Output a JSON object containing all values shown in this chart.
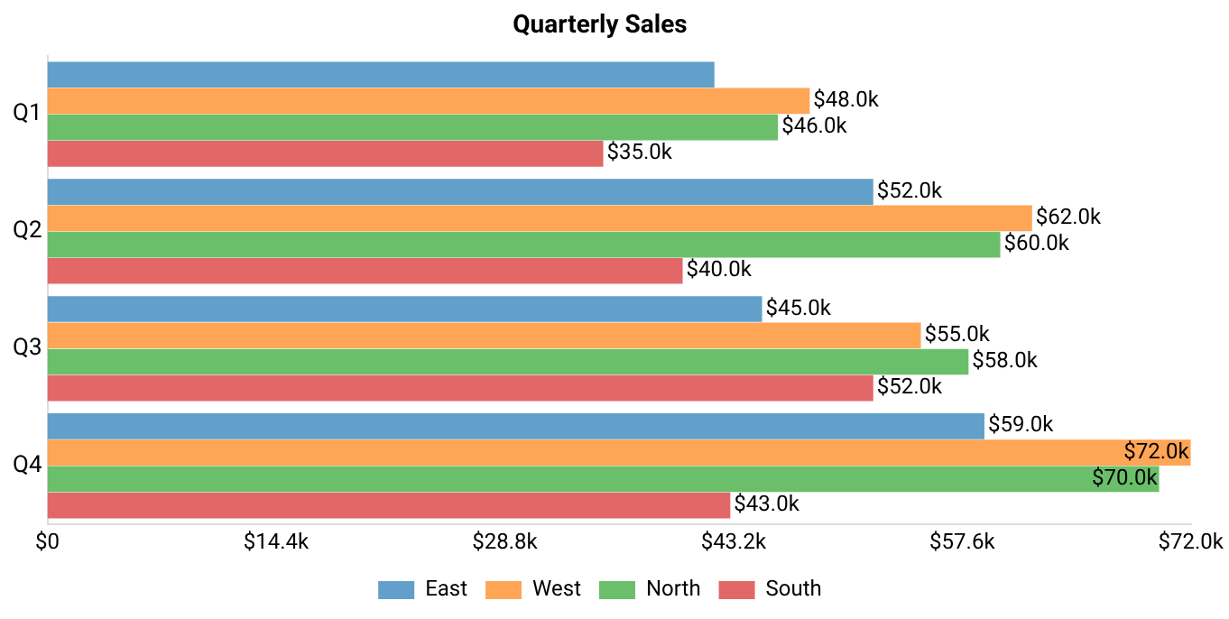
{
  "chart_data": {
    "type": "bar",
    "orientation": "horizontal",
    "title": "Quarterly Sales",
    "categories": [
      "Q1",
      "Q2",
      "Q3",
      "Q4"
    ],
    "series": [
      {
        "name": "East",
        "color": "#62a0cb",
        "values": [
          42,
          52,
          45,
          59
        ],
        "value_labels": [
          null,
          "$52.0k",
          "$45.0k",
          "$59.0k"
        ]
      },
      {
        "name": "West",
        "color": "#ffa556",
        "values": [
          48,
          62,
          55,
          72
        ],
        "value_labels": [
          "$48.0k",
          "$62.0k",
          "$55.0k",
          "$72.0k"
        ]
      },
      {
        "name": "North",
        "color": "#6bbf6b",
        "values": [
          46,
          60,
          58,
          70
        ],
        "value_labels": [
          "$46.0k",
          "$60.0k",
          "$58.0k",
          "$70.0k"
        ]
      },
      {
        "name": "South",
        "color": "#e26868",
        "values": [
          35,
          40,
          52,
          43
        ],
        "value_labels": [
          "$35.0k",
          "$40.0k",
          "$52.0k",
          "$43.0k"
        ]
      }
    ],
    "xlim": [
      0,
      72
    ],
    "xticks": [
      {
        "value": 0,
        "label": "$0"
      },
      {
        "value": 14.4,
        "label": "$14.4k"
      },
      {
        "value": 28.8,
        "label": "$28.8k"
      },
      {
        "value": 43.2,
        "label": "$43.2k"
      },
      {
        "value": 57.6,
        "label": "$57.6k"
      },
      {
        "value": 72,
        "label": "$72.0k"
      }
    ],
    "grid": false,
    "legend": "bottom"
  }
}
